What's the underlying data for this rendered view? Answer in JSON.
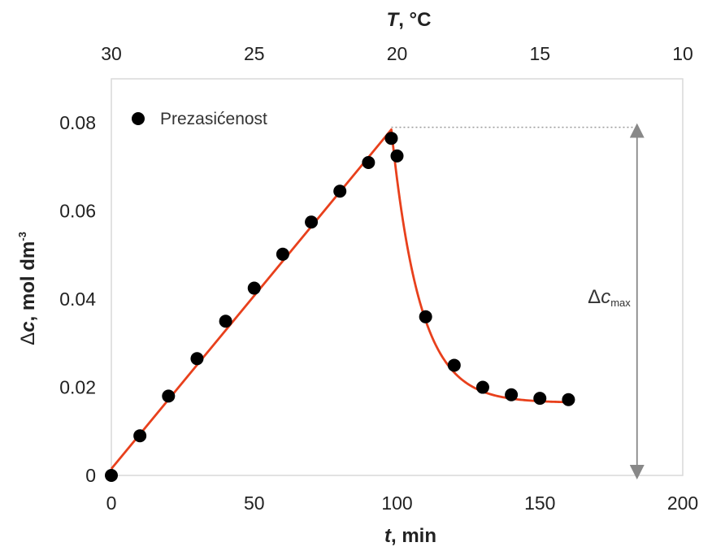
{
  "chart_data": {
    "type": "scatter",
    "x_bottom": {
      "title_italic": "t",
      "title_rest": ", min",
      "range": [
        0,
        200
      ],
      "ticks": [
        "0",
        "50",
        "100",
        "150",
        "200"
      ]
    },
    "x_top": {
      "title_italic": "T",
      "title_rest": ", °C",
      "range": [
        30,
        10
      ],
      "ticks": [
        "30",
        "25",
        "20",
        "15",
        "10"
      ]
    },
    "y": {
      "title_prefix": "Δ",
      "title_italic": "c",
      "title_rest": ", mol dm",
      "title_sup": "-3",
      "range": [
        0,
        0.09
      ],
      "ticks": [
        "0",
        "0.02",
        "0.04",
        "0.06",
        "0.08"
      ]
    },
    "legend": {
      "label": "Prezasićenost",
      "placement": "top-left"
    },
    "series": [
      {
        "name": "Prezasićenost",
        "marker": "circle",
        "color": "#000000",
        "x": [
          0,
          10,
          20,
          30,
          40,
          50,
          60,
          70,
          80,
          90,
          98,
          100,
          110,
          120,
          130,
          140,
          150,
          160
        ],
        "y": [
          0,
          0.009,
          0.018,
          0.0265,
          0.035,
          0.0425,
          0.0502,
          0.0575,
          0.0645,
          0.071,
          0.0765,
          0.0725,
          0.036,
          0.025,
          0.02,
          0.0183,
          0.0175,
          0.0172
        ]
      }
    ],
    "fit_line": {
      "color": "#e8401c",
      "linear": {
        "x": [
          0,
          98
        ],
        "y": [
          0.0015,
          0.0785
        ]
      },
      "decay": {
        "x_start": 98,
        "x_end": 160,
        "y_start": 0.0785,
        "y_end": 0.0165,
        "rate": 0.1
      }
    },
    "annotation": {
      "prefix": "Δ",
      "italic": "c",
      "sub": "max",
      "x_from": 98,
      "x_to": 184,
      "y_top": 0.079,
      "y_bottom": 0,
      "color": "#888888"
    },
    "grid": false
  }
}
